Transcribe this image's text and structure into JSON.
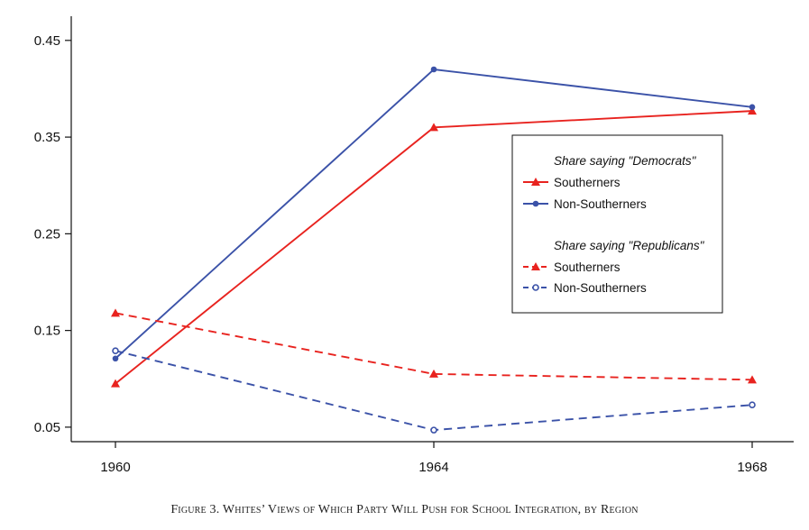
{
  "chart_data": {
    "type": "line",
    "x": [
      "1960",
      "1964",
      "1968"
    ],
    "ylim": [
      0.035,
      0.475
    ],
    "yticks": [
      "0.05",
      "0.15",
      "0.25",
      "0.35",
      "0.45"
    ],
    "grid": false,
    "legend_position": "right",
    "legend_groups": [
      {
        "heading": "Share saying \"Democrats\""
      },
      {
        "heading": "Share saying \"Republicans\""
      }
    ],
    "series": [
      {
        "name": "Southerners",
        "group": 0,
        "color": "#e8231f",
        "dash": "solid",
        "marker": "triangle",
        "values": [
          0.095,
          0.36,
          0.377
        ]
      },
      {
        "name": "Non-Southerners",
        "group": 0,
        "color": "#3b52a8",
        "dash": "solid",
        "marker": "circle",
        "values": [
          0.121,
          0.42,
          0.381
        ]
      },
      {
        "name": "Southerners",
        "group": 1,
        "color": "#e8231f",
        "dash": "dashed",
        "marker": "triangle",
        "values": [
          0.168,
          0.105,
          0.099
        ]
      },
      {
        "name": "Non-Southerners",
        "group": 1,
        "color": "#3b52a8",
        "dash": "dashed",
        "marker": "circle-open",
        "values": [
          0.129,
          0.047,
          0.073
        ]
      }
    ],
    "caption": "Figure 3. Whites’ Views of Which Party Will Push for School Integration, by Region"
  }
}
